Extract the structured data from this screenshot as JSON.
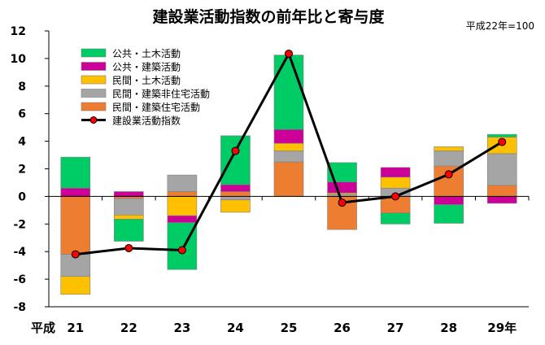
{
  "chart_data": {
    "type": "bar",
    "stacked": true,
    "title": "建設業活動指数の前年比と寄与度",
    "subtitle": "平成22年=100",
    "x_prefix_label": "平成",
    "categories": [
      "21",
      "22",
      "23",
      "24",
      "25",
      "26",
      "27",
      "28",
      "29年"
    ],
    "ylim": [
      -8,
      12
    ],
    "yticks": [
      -8,
      -6,
      -4,
      -2,
      0,
      2,
      4,
      6,
      8,
      10,
      12
    ],
    "grid": false,
    "legend_position": "top-left",
    "series": [
      {
        "name": "民間・建築住宅活動",
        "color": "#ED7D31",
        "values": [
          -4.2,
          -0.15,
          0.35,
          0.35,
          2.5,
          -2.4,
          -1.2,
          2.2,
          0.8
        ]
      },
      {
        "name": "民間・建築非住宅活動",
        "color": "#A5A5A5",
        "values": [
          -1.6,
          -1.2,
          1.2,
          -0.25,
          0.8,
          0.15,
          0.6,
          1.1,
          2.3
        ]
      },
      {
        "name": "民間・土木活動",
        "color": "#FFC000",
        "values": [
          -1.3,
          -0.3,
          -1.4,
          -0.9,
          0.55,
          0.1,
          0.8,
          0.3,
          1.2
        ]
      },
      {
        "name": "公共・建築活動",
        "color": "#CC0099",
        "values": [
          0.6,
          0.35,
          -0.5,
          0.5,
          1.0,
          0.8,
          0.7,
          -0.6,
          -0.5
        ]
      },
      {
        "name": "公共・土木活動",
        "color": "#00CC66",
        "values": [
          2.25,
          -1.6,
          -3.4,
          3.55,
          5.4,
          1.4,
          -0.8,
          -1.35,
          0.2
        ]
      }
    ],
    "line_series": {
      "name": "建設業活動指数",
      "line_color": "#000000",
      "marker_color": "#FF0000",
      "values": [
        -4.2,
        -3.75,
        -3.9,
        3.3,
        10.35,
        -0.45,
        0.0,
        1.6,
        3.95
      ]
    }
  }
}
